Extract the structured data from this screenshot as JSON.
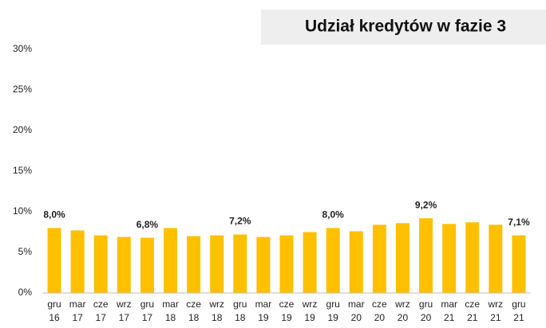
{
  "chart_data": {
    "type": "bar",
    "title": "Udział kredytów w fazie 3",
    "categories": [
      [
        "gru",
        "16"
      ],
      [
        "mar",
        "17"
      ],
      [
        "cze",
        "17"
      ],
      [
        "wrz",
        "17"
      ],
      [
        "gru",
        "17"
      ],
      [
        "mar",
        "18"
      ],
      [
        "cze",
        "18"
      ],
      [
        "wrz",
        "18"
      ],
      [
        "gru",
        "18"
      ],
      [
        "mar",
        "19"
      ],
      [
        "cze",
        "19"
      ],
      [
        "wrz",
        "19"
      ],
      [
        "gru",
        "19"
      ],
      [
        "mar",
        "20"
      ],
      [
        "cze",
        "20"
      ],
      [
        "wrz",
        "20"
      ],
      [
        "gru",
        "20"
      ],
      [
        "mar",
        "21"
      ],
      [
        "cze",
        "21"
      ],
      [
        "wrz",
        "21"
      ],
      [
        "gru",
        "21"
      ]
    ],
    "values": [
      8.0,
      7.7,
      7.1,
      6.9,
      6.8,
      8.0,
      7.0,
      7.1,
      7.2,
      6.9,
      7.1,
      7.5,
      8.0,
      7.6,
      8.4,
      8.6,
      9.2,
      8.5,
      8.7,
      8.4,
      7.1
    ],
    "value_labels": [
      "8,0%",
      null,
      null,
      null,
      "6,8%",
      null,
      null,
      null,
      "7,2%",
      null,
      null,
      null,
      "8,0%",
      null,
      null,
      null,
      "9,2%",
      null,
      null,
      null,
      "7,1%"
    ],
    "color": "#ffc000",
    "ylim": [
      0,
      30
    ],
    "yticks": [
      {
        "value": 0,
        "label": "0%"
      },
      {
        "value": 5,
        "label": "5%"
      },
      {
        "value": 10,
        "label": "10%"
      },
      {
        "value": 15,
        "label": "15%"
      },
      {
        "value": 20,
        "label": "20%"
      },
      {
        "value": 25,
        "label": "25%"
      },
      {
        "value": 30,
        "label": "30%"
      }
    ],
    "grid": false
  }
}
